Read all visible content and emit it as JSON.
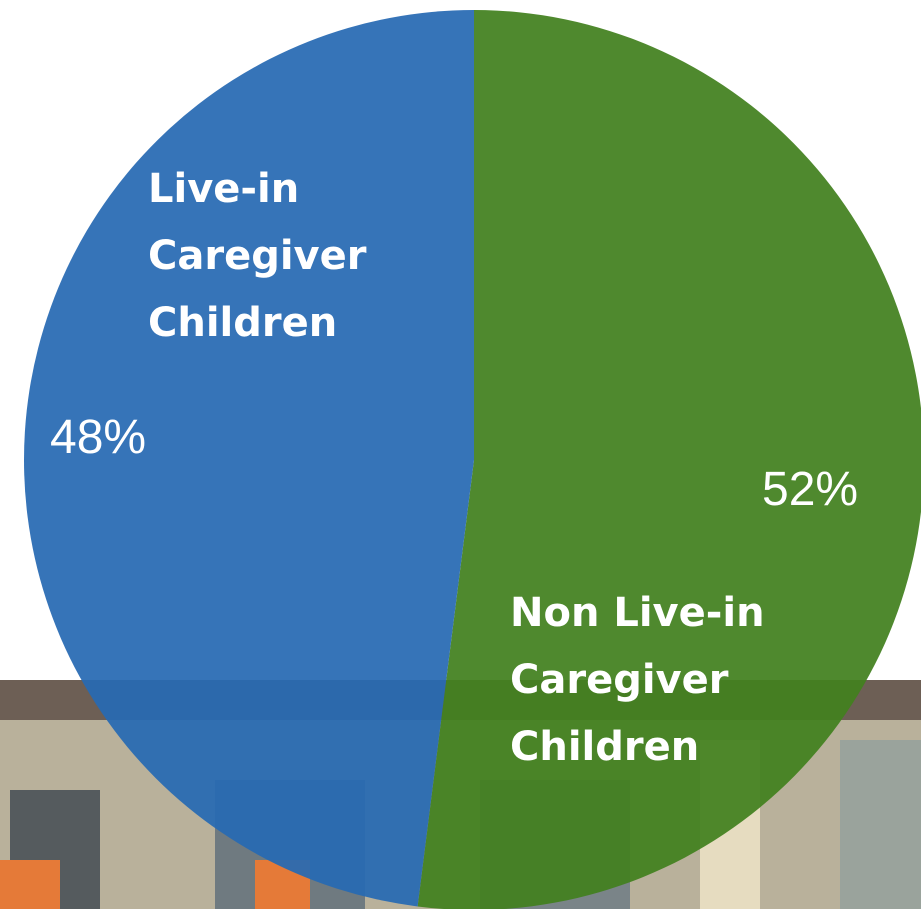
{
  "chart_data": {
    "type": "pie",
    "categories": [
      "Non Live-in Caregiver Children",
      "Live-in Caregiver Children"
    ],
    "values": [
      52,
      48
    ],
    "value_labels": [
      "52%",
      "48%"
    ],
    "colors": [
      "#42801e",
      "#2769b3"
    ]
  }
}
